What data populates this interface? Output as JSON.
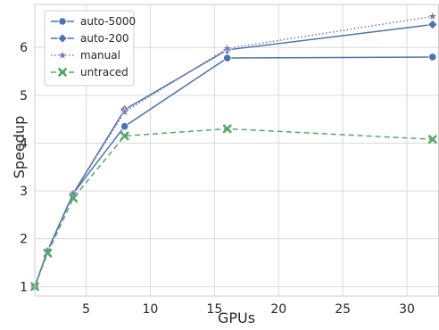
{
  "chart_data": {
    "type": "line",
    "title": "",
    "xlabel": "GPUs",
    "ylabel": "Speedup",
    "xlim": [
      1,
      32.5
    ],
    "ylim": [
      0.8,
      6.9
    ],
    "xticks": [
      5,
      10,
      15,
      20,
      25,
      30
    ],
    "yticks": [
      1,
      2,
      3,
      4,
      5,
      6
    ],
    "grid": true,
    "legend_position": "top-left",
    "x": [
      1,
      2,
      4,
      8,
      16,
      32
    ],
    "series": [
      {
        "name": "auto-5000",
        "values": [
          1.0,
          1.75,
          2.95,
          4.35,
          5.78,
          5.8
        ],
        "color": "#4c72b0",
        "marker": "circle",
        "line_style": "solid"
      },
      {
        "name": "auto-200",
        "values": [
          1.0,
          1.75,
          2.95,
          4.7,
          5.95,
          6.48
        ],
        "color": "#4c72b0",
        "marker": "diamond",
        "line_style": "solid"
      },
      {
        "name": "manual",
        "values": [
          1.0,
          1.75,
          2.95,
          4.65,
          5.98,
          6.65
        ],
        "color": "#8172b2",
        "marker": "star",
        "line_style": "dotted"
      },
      {
        "name": "untraced",
        "values": [
          1.0,
          1.7,
          2.85,
          4.15,
          4.3,
          4.08
        ],
        "color": "#55a868",
        "marker": "x",
        "line_style": "dashed"
      }
    ]
  }
}
